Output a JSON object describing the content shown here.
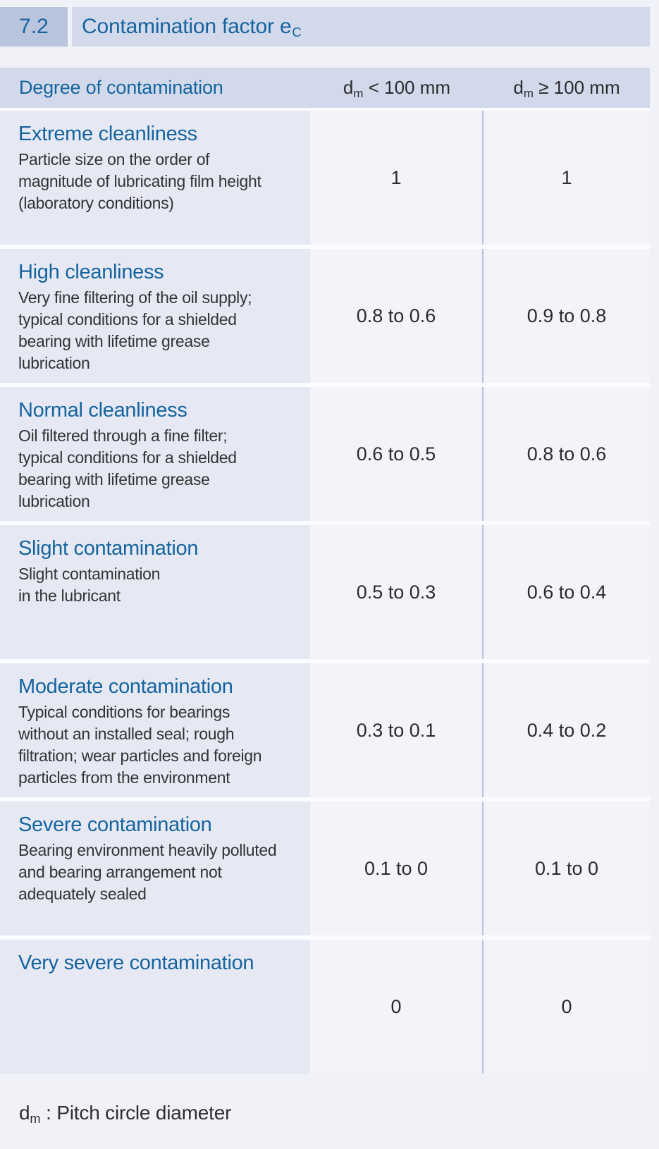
{
  "header": {
    "section_number": "7.2",
    "title_text": "Contamination factor e",
    "title_sub": "C"
  },
  "table": {
    "header": {
      "degree_label": "Degree of contamination",
      "col1": {
        "sym": "d",
        "sub": "m",
        "cond": "< 100 mm"
      },
      "col2": {
        "sym": "d",
        "sub": "m",
        "cond": "≥ 100 mm"
      }
    },
    "rows": [
      {
        "title": "Extreme cleanliness",
        "description": "Particle size on the order of\nmagnitude of lubricating film height\n(laboratory conditions)",
        "value_small": "1",
        "value_large": "1"
      },
      {
        "title": "High cleanliness",
        "description": "Very fine filtering of the oil supply;\ntypical conditions for a shielded\nbearing with lifetime grease\nlubrication",
        "value_small": "0.8 to 0.6",
        "value_large": "0.9 to 0.8"
      },
      {
        "title": "Normal cleanliness",
        "description": "Oil filtered through a fine filter;\ntypical conditions for a shielded\nbearing with lifetime grease\nlubrication",
        "value_small": "0.6 to 0.5",
        "value_large": "0.8 to 0.6"
      },
      {
        "title": "Slight contamination",
        "description": "Slight contamination\nin the lubricant",
        "value_small": "0.5 to 0.3",
        "value_large": "0.6 to 0.4"
      },
      {
        "title": "Moderate contamination",
        "description": "Typical conditions for bearings\nwithout an installed seal; rough\nfiltration; wear particles and foreign\nparticles from the environment",
        "value_small": "0.3 to 0.1",
        "value_large": "0.4 to 0.2"
      },
      {
        "title": "Severe contamination",
        "description": "Bearing environment heavily polluted\nand bearing arrangement not\nadequately sealed",
        "value_small": "0.1 to 0",
        "value_large": "0.1 to 0"
      },
      {
        "title": "Very severe contamination",
        "description": "",
        "value_small": "0",
        "value_large": "0"
      }
    ]
  },
  "footnote": {
    "sym": "d",
    "sub": "m",
    "text": ": Pitch circle diameter"
  },
  "colors": {
    "accent_blue": "#15649f",
    "section_box": "#b9c4dd",
    "band": "#d2d9ea",
    "desc_cell": "#e6e9f3",
    "value_cell": "#f3f4f9",
    "divider": "#b7c4df",
    "text_dark": "#2b2b2d"
  }
}
